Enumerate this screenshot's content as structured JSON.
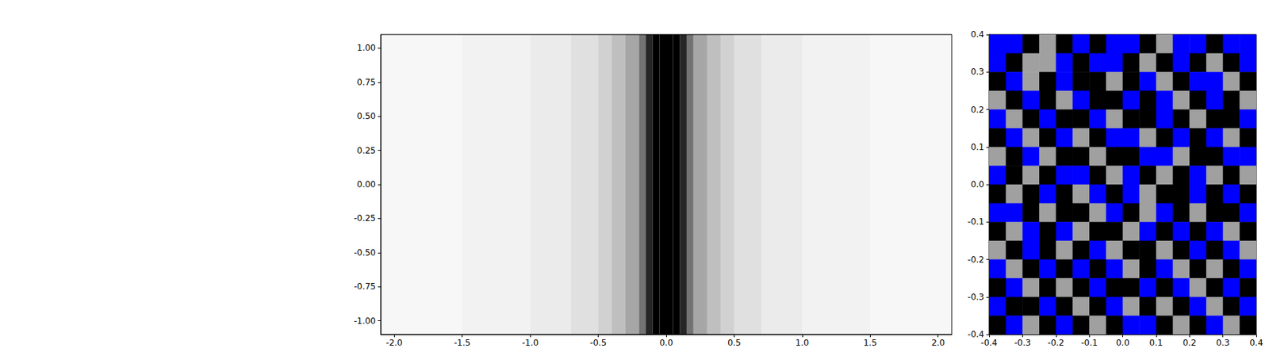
{
  "chart_data": [
    {
      "type": "density",
      "bins": [
        -2.1,
        -1.5,
        -1.0,
        -0.7,
        -0.5,
        -0.4,
        -0.3,
        -0.2,
        -0.15,
        -0.1,
        -0.05,
        0,
        0.05,
        0.1,
        0.15,
        0.2,
        0.3,
        0.4,
        0.5,
        0.7,
        1.0,
        1.5,
        2.1
      ],
      "density": [
        0.03,
        0.05,
        0.08,
        0.12,
        0.18,
        0.25,
        0.35,
        0.55,
        0.85,
        1,
        1,
        1,
        1,
        0.85,
        0.55,
        0.35,
        0.25,
        0.18,
        0.12,
        0.08,
        0.05,
        0.03
      ],
      "color": "#000000",
      "xlim": [
        -2.1,
        2.1
      ],
      "xticks": [
        {
          "value": -2.0,
          "label": "-2.0"
        },
        -1.5,
        {
          "value": -1.0,
          "label": "-1.0"
        },
        -0.5,
        {
          "value": 0.0,
          "label": "0.0"
        },
        0.5,
        {
          "value": 1.0,
          "label": "1.0"
        },
        1.5,
        {
          "value": 2.0,
          "label": "2.0"
        }
      ],
      "ylim": [
        -1.1,
        1.1
      ],
      "yticks": [
        {
          "value": -1.0,
          "label": "-1.00"
        },
        {
          "value": -0.75,
          "label": "-0.75"
        },
        {
          "value": -0.5,
          "label": "-0.50"
        },
        {
          "value": -0.25,
          "label": "-0.25"
        },
        {
          "value": 0.0,
          "label": "0.00"
        },
        {
          "value": 0.25,
          "label": "0.25"
        },
        {
          "value": 0.5,
          "label": "0.50"
        },
        {
          "value": 0.75,
          "label": "0.75"
        },
        {
          "value": 1.0,
          "label": "1.00"
        }
      ],
      "grid": false
    },
    {
      "type": "image",
      "cells": [
        [
          2,
          2,
          0,
          1,
          0,
          2,
          0,
          2,
          2,
          0,
          1,
          2,
          2,
          0,
          2,
          2
        ],
        [
          2,
          0,
          1,
          1,
          2,
          0,
          2,
          2,
          0,
          1,
          0,
          2,
          0,
          1,
          0,
          2
        ],
        [
          0,
          2,
          1,
          0,
          2,
          0,
          0,
          1,
          0,
          2,
          1,
          0,
          2,
          2,
          1,
          0
        ],
        [
          1,
          0,
          2,
          0,
          1,
          2,
          0,
          0,
          2,
          0,
          2,
          1,
          0,
          2,
          0,
          1
        ],
        [
          2,
          1,
          0,
          2,
          0,
          0,
          2,
          1,
          0,
          0,
          2,
          0,
          1,
          0,
          0,
          2
        ],
        [
          0,
          2,
          1,
          0,
          2,
          1,
          0,
          2,
          2,
          1,
          0,
          2,
          0,
          2,
          1,
          0
        ],
        [
          1,
          0,
          2,
          1,
          0,
          0,
          1,
          0,
          0,
          2,
          2,
          1,
          0,
          0,
          2,
          2
        ],
        [
          2,
          0,
          1,
          0,
          2,
          2,
          0,
          1,
          2,
          0,
          1,
          0,
          2,
          1,
          0,
          1
        ],
        [
          0,
          1,
          0,
          2,
          0,
          1,
          2,
          0,
          2,
          1,
          0,
          0,
          2,
          0,
          2,
          0
        ],
        [
          2,
          2,
          0,
          1,
          0,
          0,
          1,
          2,
          0,
          1,
          2,
          0,
          1,
          0,
          0,
          2
        ],
        [
          0,
          1,
          2,
          0,
          2,
          1,
          0,
          0,
          1,
          2,
          0,
          2,
          0,
          2,
          1,
          0
        ],
        [
          1,
          0,
          2,
          0,
          1,
          0,
          2,
          1,
          0,
          0,
          1,
          0,
          2,
          0,
          2,
          1
        ],
        [
          2,
          1,
          0,
          2,
          0,
          2,
          0,
          2,
          1,
          0,
          2,
          1,
          0,
          1,
          0,
          2
        ],
        [
          0,
          2,
          1,
          0,
          1,
          0,
          2,
          0,
          0,
          2,
          0,
          2,
          1,
          0,
          2,
          0
        ],
        [
          2,
          0,
          0,
          2,
          0,
          1,
          0,
          2,
          1,
          0,
          1,
          0,
          2,
          1,
          0,
          2
        ],
        [
          0,
          2,
          1,
          0,
          2,
          0,
          1,
          0,
          2,
          2,
          0,
          1,
          0,
          2,
          1,
          0
        ]
      ],
      "colors": [
        "#000000",
        "#a0a0a0",
        "#0000ff"
      ],
      "xlim": [
        -0.4,
        0.4
      ],
      "xticks": [
        -0.4,
        -0.3,
        -0.2,
        -0.1,
        {
          "value": 0.0,
          "label": "0.0"
        },
        0.1,
        0.2,
        0.3,
        0.4
      ],
      "ylim": [
        -0.4,
        0.4
      ],
      "yticks": [
        -0.4,
        -0.3,
        -0.2,
        -0.1,
        {
          "value": 0.0,
          "label": "0.0"
        },
        0.1,
        0.2,
        0.3,
        0.4
      ],
      "grid": false
    }
  ]
}
